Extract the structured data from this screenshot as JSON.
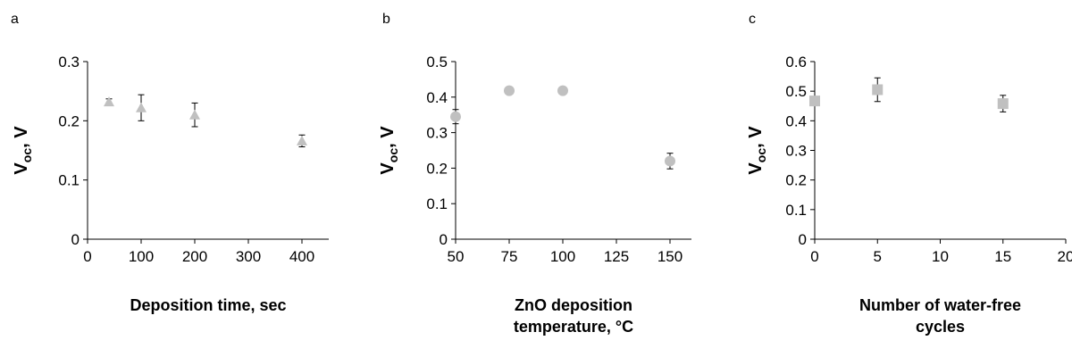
{
  "chart_data": [
    {
      "type": "scatter",
      "panel_label": "a",
      "xlabel": [
        "Deposition time, sec"
      ],
      "ylabel": {
        "main": "V",
        "sub": "oc",
        "rest": ", V"
      },
      "xlim": [
        0,
        450
      ],
      "ylim": [
        0,
        0.3
      ],
      "xticks": [
        0,
        100,
        200,
        300,
        400
      ],
      "xtick_labels": [
        "0",
        "100",
        "200",
        "300",
        "400"
      ],
      "yticks": [
        0,
        0.1,
        0.2,
        0.3
      ],
      "ytick_labels": [
        "0",
        "0.1",
        "0.2",
        "0.3"
      ],
      "marker": "triangle",
      "color": "#c0c0c0",
      "points": [
        {
          "x": 40,
          "y": 0.232,
          "err": 0.005
        },
        {
          "x": 100,
          "y": 0.222,
          "err": 0.022
        },
        {
          "x": 200,
          "y": 0.21,
          "err": 0.02
        },
        {
          "x": 400,
          "y": 0.166,
          "err": 0.01
        }
      ]
    },
    {
      "type": "scatter",
      "panel_label": "b",
      "xlabel": [
        "ZnO deposition",
        "temperature, °C"
      ],
      "ylabel": {
        "main": "V",
        "sub": "oc",
        "rest": ", V"
      },
      "xlim": [
        50,
        160
      ],
      "ylim": [
        0,
        0.5
      ],
      "xticks": [
        50,
        75,
        100,
        125,
        150
      ],
      "xtick_labels": [
        "50",
        "75",
        "100",
        "125",
        "150"
      ],
      "yticks": [
        0,
        0.1,
        0.2,
        0.3,
        0.4,
        0.5
      ],
      "ytick_labels": [
        "0",
        "0.1",
        "0.2",
        "0.3",
        "0.4",
        "0.5"
      ],
      "marker": "circle",
      "color": "#c0c0c0",
      "points": [
        {
          "x": 50,
          "y": 0.345,
          "err": 0.02
        },
        {
          "x": 75,
          "y": 0.418,
          "err": 0.008
        },
        {
          "x": 100,
          "y": 0.418,
          "err": 0.008
        },
        {
          "x": 150,
          "y": 0.22,
          "err": 0.022
        }
      ]
    },
    {
      "type": "scatter",
      "panel_label": "c",
      "xlabel": [
        "Number of water-free",
        "cycles"
      ],
      "ylabel": {
        "main": "V",
        "sub": "oc",
        "rest": ", V"
      },
      "xlim": [
        0,
        20
      ],
      "ylim": [
        0,
        0.6
      ],
      "xticks": [
        0,
        5,
        10,
        15,
        20
      ],
      "xtick_labels": [
        "0",
        "5",
        "10",
        "15",
        "20"
      ],
      "yticks": [
        0,
        0.1,
        0.2,
        0.3,
        0.4,
        0.5,
        0.6
      ],
      "ytick_labels": [
        "0",
        "0.1",
        "0.2",
        "0.3",
        "0.4",
        "0.5",
        "0.6"
      ],
      "marker": "square",
      "color": "#c0c0c0",
      "points": [
        {
          "x": 0,
          "y": 0.467,
          "err": 0.012
        },
        {
          "x": 5,
          "y": 0.505,
          "err": 0.04
        },
        {
          "x": 15,
          "y": 0.458,
          "err": 0.028
        }
      ]
    }
  ]
}
